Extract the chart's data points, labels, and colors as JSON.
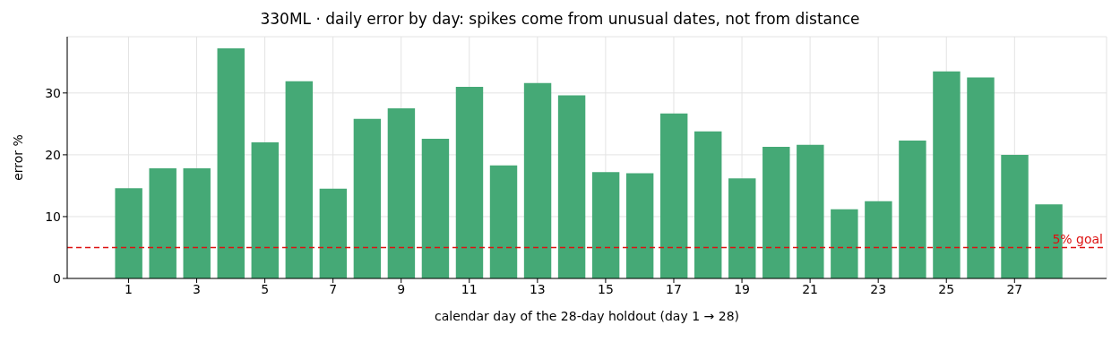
{
  "chart_data": {
    "type": "bar",
    "title": "330ML · daily error by day: spikes come from unusual dates, not from distance",
    "xlabel": "calendar day of the 28-day holdout (day 1 → 28)",
    "ylabel": "error %",
    "x": [
      1,
      2,
      3,
      4,
      5,
      6,
      7,
      8,
      9,
      10,
      11,
      12,
      13,
      14,
      15,
      16,
      17,
      18,
      19,
      20,
      21,
      22,
      23,
      24,
      25,
      26,
      27,
      28
    ],
    "values": [
      14.6,
      17.8,
      17.8,
      37.2,
      22.0,
      31.9,
      14.5,
      25.8,
      27.5,
      22.6,
      31.0,
      18.3,
      31.6,
      29.6,
      17.2,
      17.0,
      26.7,
      23.8,
      16.2,
      21.3,
      21.6,
      11.2,
      12.5,
      22.3,
      33.5,
      32.5,
      20.0,
      12.0
    ],
    "color": "#45a976",
    "xlim": [
      -0.8,
      29.7
    ],
    "xticks": [
      1,
      3,
      5,
      7,
      9,
      11,
      13,
      15,
      17,
      19,
      21,
      23,
      25,
      27
    ],
    "ylim": [
      0,
      39.1
    ],
    "yticks": [
      0,
      10,
      20,
      30
    ],
    "grid": true,
    "legend": false,
    "ref_lines": [
      {
        "axis": "y",
        "value": 5,
        "label": "5% goal",
        "color": "#dd1111",
        "line_style": "dashed"
      }
    ]
  }
}
